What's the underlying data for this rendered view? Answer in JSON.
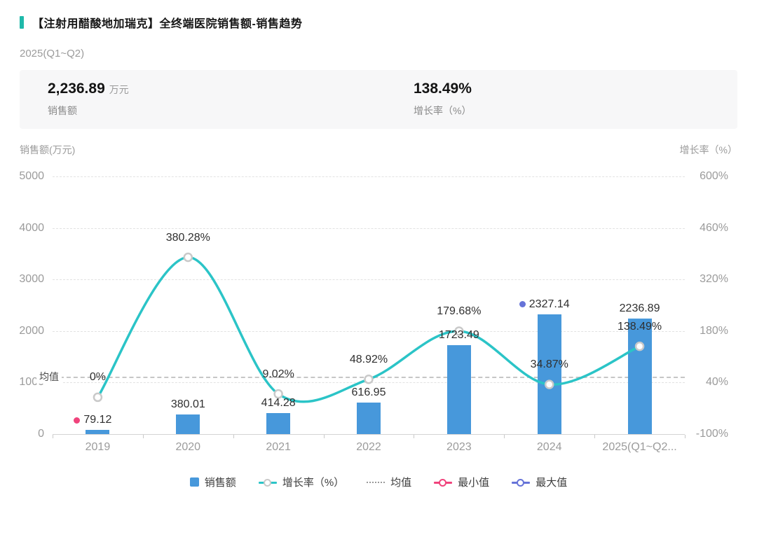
{
  "header": {
    "title": "【注射用醋酸地加瑞克】全终端医院销售额-销售趋势"
  },
  "subtitle": "2025(Q1~Q2)",
  "summary": {
    "sales_value": "2,236.89",
    "sales_unit": "万元",
    "sales_label": "销售额",
    "growth_value": "138.49%",
    "growth_label": "增长率（%）"
  },
  "axes": {
    "left_title": "销售额(万元)",
    "right_title": "增长率（%）"
  },
  "chart_data": {
    "type": "bar+line",
    "categories": [
      "2019",
      "2020",
      "2021",
      "2022",
      "2023",
      "2024",
      "2025(Q1~Q2..."
    ],
    "series": [
      {
        "name": "销售额",
        "type": "bar",
        "axis": "left",
        "color": "#4798db",
        "values": [
          79.12,
          380.01,
          414.28,
          616.95,
          1723.49,
          2327.14,
          2236.89
        ]
      },
      {
        "name": "增长率（%）",
        "type": "line",
        "axis": "right",
        "color": "#2bc4c7",
        "values": [
          0,
          380.28,
          9.02,
          48.92,
          179.68,
          34.87,
          138.49
        ]
      }
    ],
    "bar_labels": [
      "79.12",
      "380.01",
      "414.28",
      "616.95",
      "1723.49",
      "2327.14",
      "2236.89"
    ],
    "line_labels": [
      "0%",
      "380.28%",
      "9.02%",
      "48.92%",
      "179.68%",
      "34.87%",
      "138.49%"
    ],
    "left_axis": {
      "min": 0,
      "max": 5000,
      "ticks": [
        0,
        1000,
        2000,
        3000,
        4000,
        5000
      ],
      "tick_labels": [
        "0",
        "1000",
        "2000",
        "3000",
        "4000",
        "5000"
      ]
    },
    "right_axis": {
      "min": -100,
      "max": 600,
      "ticks": [
        -100,
        40,
        180,
        320,
        460,
        600
      ],
      "tick_labels": [
        "-100%",
        "40%",
        "180%",
        "320%",
        "460%",
        "600%"
      ]
    },
    "mean": {
      "label": "均值",
      "value": 1111.13
    },
    "min_marker": {
      "category": "2019",
      "value": 79.12,
      "color": "#f0437c"
    },
    "max_marker": {
      "category": "2024",
      "value": 2327.14,
      "color": "#6673d8"
    },
    "grid": true,
    "legend_position": "bottom"
  },
  "legend": [
    {
      "key": "sales",
      "label": "销售额",
      "type": "bar",
      "color": "#4798db"
    },
    {
      "key": "growth",
      "label": "增长率（%）",
      "type": "line",
      "color": "#2bc4c7",
      "ring": "#c9c9c9"
    },
    {
      "key": "mean",
      "label": "均值",
      "type": "dashed",
      "color": "#9a9a9a"
    },
    {
      "key": "min",
      "label": "最小值",
      "type": "marker-line",
      "color": "#f0437c"
    },
    {
      "key": "max",
      "label": "最大值",
      "type": "marker-line",
      "color": "#6673d8"
    }
  ]
}
